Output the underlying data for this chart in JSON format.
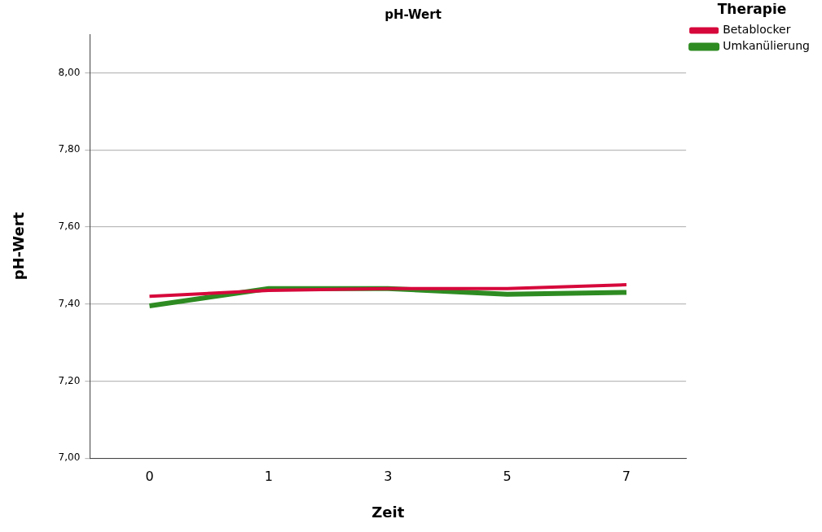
{
  "chart_data": {
    "type": "line",
    "title": "pH-Wert",
    "xlabel": "Zeit",
    "ylabel": "pH-Wert",
    "legend_title": "Therapie",
    "legend": "top right",
    "grid": "y",
    "marker": "none",
    "line_style": "solid",
    "categories": [
      "0",
      "1",
      "3",
      "5",
      "7"
    ],
    "ylim": [
      7,
      8.1
    ],
    "yticks": [
      {
        "value": 7,
        "label": "7,00"
      },
      {
        "value": 7.2,
        "label": "7,20"
      },
      {
        "value": 7.4,
        "label": "7,40"
      },
      {
        "value": 7.6,
        "label": "7,60"
      },
      {
        "value": 7.8,
        "label": "7,80"
      },
      {
        "value": 8,
        "label": "8,00"
      }
    ],
    "series": [
      {
        "name": "Betablocker",
        "color": "#d6083b",
        "values": [
          7.42,
          7.435,
          7.44,
          7.44,
          7.45
        ]
      },
      {
        "name": "Umkanülierung",
        "color": "#2e8b22",
        "values": [
          7.395,
          7.44,
          7.44,
          7.425,
          7.43
        ]
      }
    ]
  }
}
